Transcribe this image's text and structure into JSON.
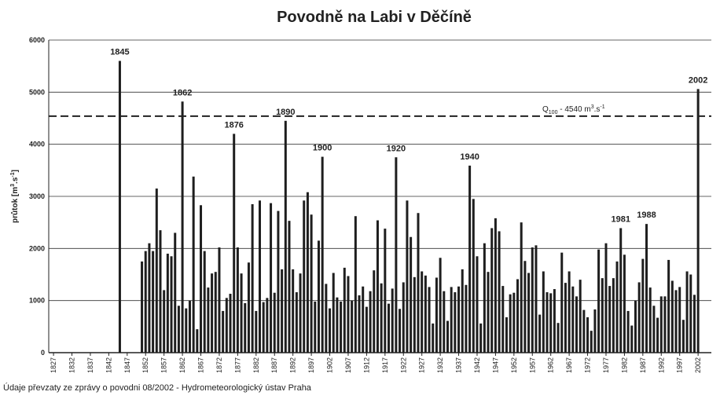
{
  "chart_data": {
    "type": "bar",
    "title": "Povodně na Labi v Děčíně",
    "y_label": [
      "průtok [m",
      "3",
      ".s",
      "-1",
      "]"
    ],
    "footer": "Údaje převzaty ze zprávy o povodni 08/2002 - Hydrometeorologický ústav Praha",
    "color": "#1e1e1e",
    "grid": true,
    "xlim": [
      1825.7,
      2005.6
    ],
    "ylim": [
      0,
      6000
    ],
    "yticks": [
      0,
      1000,
      2000,
      3000,
      4000,
      5000,
      6000
    ],
    "xticks": [
      1827,
      1832,
      1837,
      1842,
      1847,
      1852,
      1857,
      1862,
      1867,
      1872,
      1877,
      1882,
      1887,
      1892,
      1897,
      1902,
      1907,
      1912,
      1917,
      1922,
      1927,
      1932,
      1937,
      1942,
      1947,
      1952,
      1957,
      1962,
      1967,
      1972,
      1977,
      1982,
      1987,
      1992,
      1997,
      2002
    ],
    "threshold": {
      "value": 4540,
      "label": [
        "Q",
        "100",
        " - 4540 m",
        "3",
        ".s",
        "-1"
      ]
    },
    "annotations": [
      1845,
      1862,
      1876,
      1890,
      1900,
      1920,
      1940,
      1981,
      1988,
      2002
    ],
    "x": [
      1845,
      1851,
      1852,
      1853,
      1854,
      1855,
      1856,
      1857,
      1858,
      1859,
      1860,
      1861,
      1862,
      1863,
      1864,
      1865,
      1866,
      1867,
      1868,
      1869,
      1870,
      1871,
      1872,
      1873,
      1874,
      1875,
      1876,
      1877,
      1878,
      1879,
      1880,
      1881,
      1882,
      1883,
      1884,
      1885,
      1886,
      1887,
      1888,
      1889,
      1890,
      1891,
      1892,
      1893,
      1894,
      1895,
      1896,
      1897,
      1898,
      1899,
      1900,
      1901,
      1902,
      1903,
      1904,
      1905,
      1906,
      1907,
      1908,
      1909,
      1910,
      1911,
      1912,
      1913,
      1914,
      1915,
      1916,
      1917,
      1918,
      1919,
      1920,
      1921,
      1922,
      1923,
      1924,
      1925,
      1926,
      1927,
      1928,
      1929,
      1930,
      1931,
      1932,
      1933,
      1934,
      1935,
      1936,
      1937,
      1938,
      1939,
      1940,
      1941,
      1942,
      1943,
      1944,
      1945,
      1946,
      1947,
      1948,
      1949,
      1950,
      1951,
      1952,
      1953,
      1954,
      1955,
      1956,
      1957,
      1958,
      1959,
      1960,
      1961,
      1962,
      1963,
      1964,
      1965,
      1966,
      1967,
      1968,
      1969,
      1970,
      1971,
      1972,
      1973,
      1974,
      1975,
      1976,
      1977,
      1978,
      1979,
      1980,
      1981,
      1982,
      1983,
      1984,
      1985,
      1986,
      1987,
      1988,
      1989,
      1990,
      1991,
      1992,
      1993,
      1994,
      1995,
      1996,
      1997,
      1998,
      1999,
      2000,
      2001,
      2002
    ],
    "values": [
      5600,
      1750,
      1950,
      2100,
      1950,
      3150,
      2350,
      1200,
      1900,
      1850,
      2300,
      900,
      4820,
      850,
      1000,
      3380,
      450,
      2830,
      1950,
      1250,
      1520,
      1550,
      2020,
      800,
      1050,
      1130,
      4200,
      2020,
      1520,
      950,
      1730,
      2850,
      800,
      2920,
      970,
      1050,
      2870,
      1150,
      2720,
      1600,
      4450,
      2530,
      1600,
      1160,
      1520,
      2920,
      3080,
      2650,
      980,
      2150,
      3760,
      1320,
      850,
      1530,
      1060,
      980,
      1630,
      1470,
      1000,
      2620,
      1100,
      1270,
      880,
      1180,
      1580,
      2540,
      1330,
      2380,
      940,
      1230,
      3750,
      840,
      1350,
      2920,
      2220,
      1450,
      2680,
      1560,
      1480,
      1260,
      560,
      1440,
      1820,
      1180,
      610,
      1260,
      1160,
      1270,
      1600,
      1300,
      3590,
      2950,
      1850,
      560,
      2100,
      1550,
      2390,
      2580,
      2330,
      1280,
      680,
      1120,
      1150,
      1410,
      2500,
      1760,
      1530,
      2020,
      2060,
      730,
      1560,
      1160,
      1140,
      1220,
      570,
      1920,
      1340,
      1560,
      1270,
      1080,
      1400,
      820,
      680,
      420,
      830,
      1980,
      1430,
      2100,
      1280,
      1430,
      1750,
      2390,
      1880,
      800,
      520,
      1000,
      1350,
      1800,
      2470,
      1250,
      900,
      670,
      1080,
      1080,
      1780,
      1380,
      1200,
      1260,
      630,
      1560,
      1500,
      1110,
      5060
    ]
  }
}
